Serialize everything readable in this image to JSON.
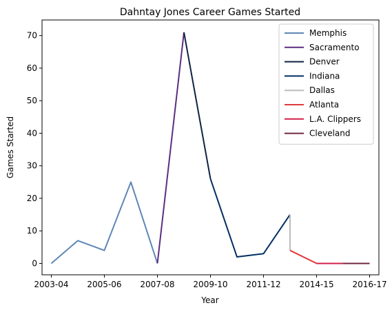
{
  "chart_data": {
    "type": "line",
    "title": "Dahntay Jones Career Games Started",
    "xlabel": "Year",
    "ylabel": "Games Started",
    "x_tick_labels": [
      "2003-04",
      "2005-06",
      "2007-08",
      "2009-10",
      "2011-12",
      "2014-15",
      "2016-17"
    ],
    "x_tick_indices": [
      0,
      2,
      4,
      6,
      8,
      10,
      12
    ],
    "xlim": [
      -0.35,
      12.35
    ],
    "ylim": [
      -3.5,
      74.8
    ],
    "y_ticks": [
      0,
      10,
      20,
      30,
      40,
      50,
      60,
      70
    ],
    "grid": false,
    "legend_position": "top-right",
    "series": [
      {
        "name": "Memphis",
        "color": "#5D86B5",
        "points": [
          [
            0,
            0
          ],
          [
            1,
            7
          ],
          [
            2,
            4
          ],
          [
            3,
            25
          ],
          [
            4,
            0
          ]
        ]
      },
      {
        "name": "Sacramento",
        "color": "#5A2D81",
        "points": [
          [
            4,
            0
          ],
          [
            5,
            71
          ]
        ]
      },
      {
        "name": "Denver",
        "color": "#0E2240",
        "points": [
          [
            5,
            71
          ],
          [
            6,
            26
          ]
        ]
      },
      {
        "name": "Indiana",
        "color": "#002D62",
        "points": [
          [
            6,
            26
          ],
          [
            7,
            2
          ],
          [
            8,
            3
          ],
          [
            9,
            15
          ]
        ]
      },
      {
        "name": "Dallas",
        "color": "#BBBBBB",
        "points": [
          [
            9,
            15
          ],
          [
            9,
            4
          ]
        ]
      },
      {
        "name": "Atlanta",
        "color": "#E03A3E",
        "points": [
          [
            9,
            4
          ],
          [
            10,
            0
          ],
          [
            11,
            0
          ]
        ]
      },
      {
        "name": "L.A. Clippers",
        "color": "#D21E4A",
        "points": [
          [
            10,
            0
          ],
          [
            11,
            0
          ]
        ]
      },
      {
        "name": "Cleveland",
        "color": "#6F263D",
        "points": [
          [
            11,
            0
          ],
          [
            12,
            0
          ]
        ]
      }
    ]
  }
}
